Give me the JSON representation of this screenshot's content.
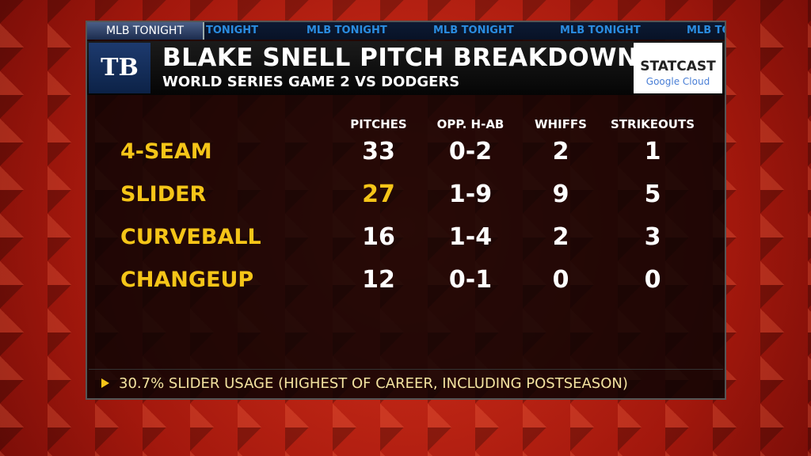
{
  "ticker": {
    "label": "MLB TONIGHT",
    "items": [
      "TONIGHT",
      "MLB TONIGHT",
      "MLB TONIGHT",
      "MLB TONIGHT",
      "MLB TO"
    ]
  },
  "header": {
    "logo": "TB",
    "title": "BLAKE SNELL PITCH BREAKDOWN",
    "subtitle": "WORLD SERIES GAME 2 VS DODGERS",
    "sponsor": {
      "name": "STATCAST",
      "partner": "Google Cloud"
    }
  },
  "table": {
    "columns": [
      "PITCHES",
      "OPP. H-AB",
      "WHIFFS",
      "STRIKEOUTS"
    ],
    "rows": [
      [
        "4-SEAM",
        33,
        "0-2",
        2,
        1
      ],
      [
        "SLIDER",
        27,
        "1-9",
        9,
        5
      ],
      [
        "CURVEBALL",
        16,
        "1-4",
        2,
        3
      ],
      [
        "CHANGEUP",
        12,
        "0-1",
        0,
        0
      ]
    ]
  },
  "note": "30.7% SLIDER USAGE (HIGHEST OF CAREER, INCLUDING POSTSEASON)"
}
